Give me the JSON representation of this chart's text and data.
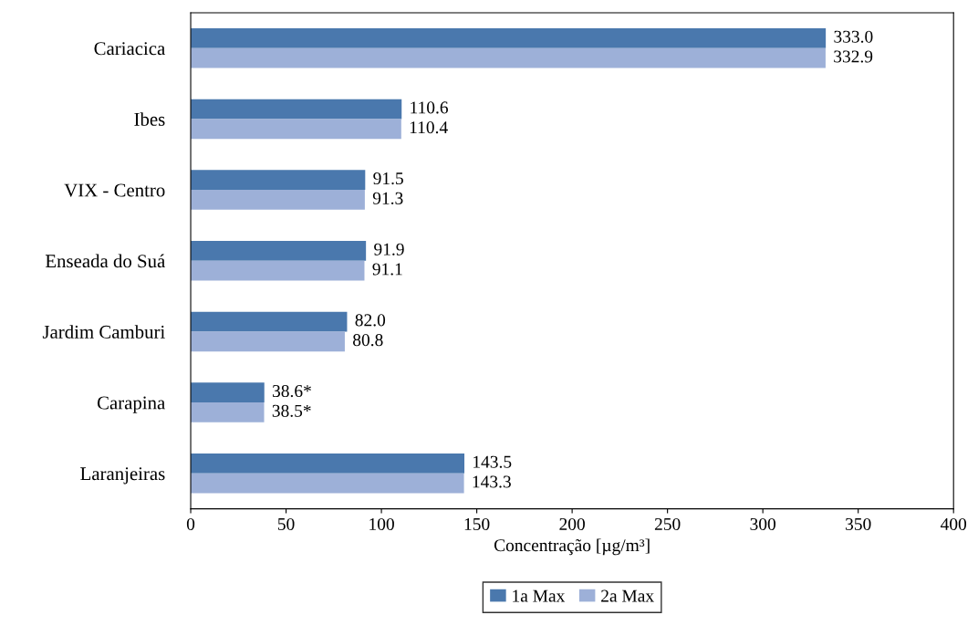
{
  "chart_data": {
    "type": "bar",
    "orientation": "horizontal",
    "xlabel": "Concentração [µg/m³]",
    "categories": [
      "Cariacica",
      "Ibes",
      "VIX - Centro",
      "Enseada do Suá",
      "Jardim Camburi",
      "Carapina",
      "Laranjeiras"
    ],
    "series": [
      {
        "name": "1a Max",
        "color": "#4a78ad",
        "values": [
          333.0,
          110.6,
          91.5,
          91.9,
          82.0,
          38.6,
          143.5
        ],
        "value_labels": [
          "333.0",
          "110.6",
          "91.5",
          "91.9",
          "82.0",
          "38.6*",
          "143.5"
        ]
      },
      {
        "name": "2a Max",
        "color": "#9db0d8",
        "values": [
          332.9,
          110.4,
          91.3,
          91.1,
          80.8,
          38.5,
          143.3
        ],
        "value_labels": [
          "332.9",
          "110.4",
          "91.3",
          "91.1",
          "80.8",
          "38.5*",
          "143.3"
        ]
      }
    ],
    "xlim": [
      0,
      400
    ],
    "xticks": [
      0,
      50,
      100,
      150,
      200,
      250,
      300,
      350,
      400
    ],
    "grid": false,
    "legend": "bottom"
  }
}
